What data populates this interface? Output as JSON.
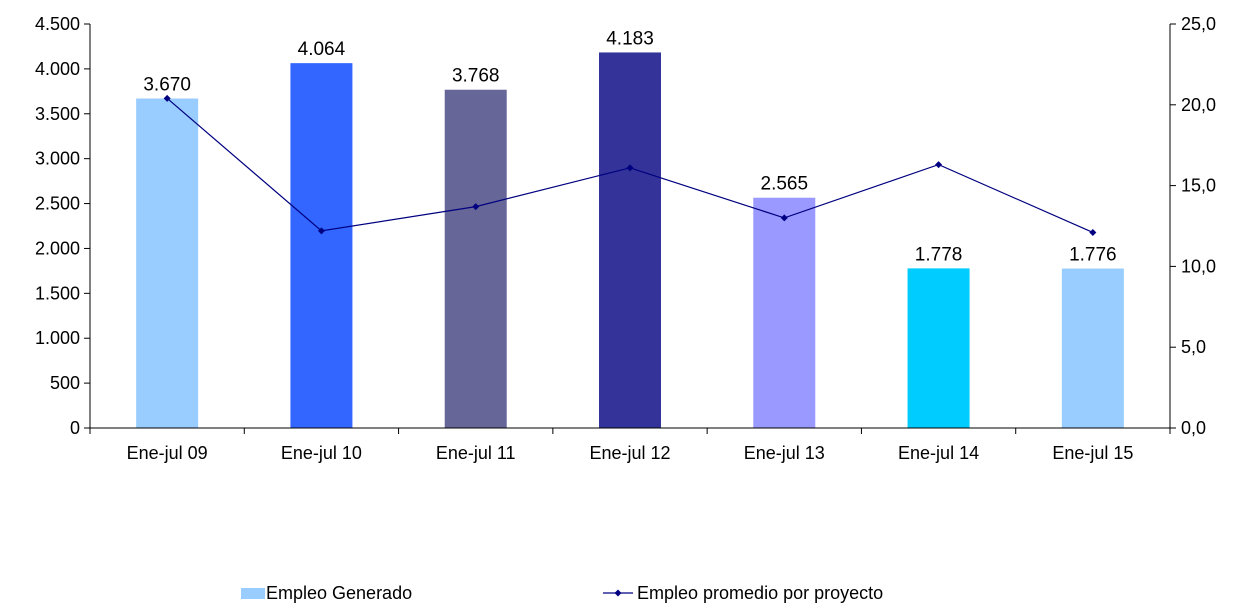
{
  "chart_data": {
    "type": "bar",
    "categories": [
      "Ene-jul 09",
      "Ene-jul 10",
      "Ene-jul 11",
      "Ene-jul 12",
      "Ene-jul 13",
      "Ene-jul 14",
      "Ene-jul 15"
    ],
    "series": [
      {
        "name": "Empleo Generado",
        "type": "bar",
        "axis": "left",
        "values": [
          3670,
          4064,
          3768,
          4183,
          2565,
          1778,
          1776
        ],
        "data_labels": [
          "3.670",
          "4.064",
          "3.768",
          "4.183",
          "2.565",
          "1.778",
          "1.776"
        ],
        "colors": [
          "#99ccff",
          "#3366ff",
          "#666699",
          "#333399",
          "#9999ff",
          "#00ccff",
          "#99ccff"
        ]
      },
      {
        "name": "Empleo promedio por proyecto",
        "type": "line",
        "axis": "right",
        "values": [
          20.4,
          12.2,
          13.7,
          16.1,
          13.0,
          16.3,
          12.1
        ],
        "color": "#000080"
      }
    ],
    "y_left": {
      "ylim": [
        0,
        4500
      ],
      "ticks": [
        0,
        500,
        1000,
        1500,
        2000,
        2500,
        3000,
        3500,
        4000,
        4500
      ],
      "tick_labels": [
        "0",
        "500",
        "1.000",
        "1.500",
        "2.000",
        "2.500",
        "3.000",
        "3.500",
        "4.000",
        "4.500"
      ]
    },
    "y_right": {
      "ylim": [
        0,
        25
      ],
      "ticks": [
        0,
        5,
        10,
        15,
        20,
        25
      ],
      "tick_labels": [
        "0,0",
        "5,0",
        "10,0",
        "15,0",
        "20,0",
        "25,0"
      ]
    },
    "grid": false,
    "legend": "bottom"
  }
}
